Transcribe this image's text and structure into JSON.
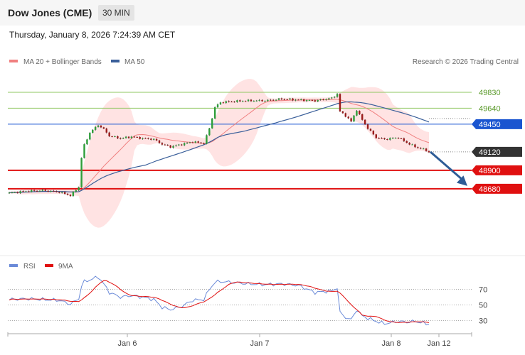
{
  "header": {
    "title": "Dow Jones (CME)",
    "timeframe": "30 MIN",
    "datetime": "Thursday, January 8, 2026 7:24:39 AM CET"
  },
  "legend": {
    "ma20": "MA 20 + Bollinger Bands",
    "ma50": "MA 50",
    "credit": "Research © 2026 Trading Central",
    "rsi": "RSI",
    "rsi_ma": "9MA"
  },
  "colors": {
    "ma20": "#f08080",
    "ma50": "#3a5f9a",
    "band_fill": "#ffdede",
    "resistance": "#8fc760",
    "pivot": "#1a55d0",
    "support": "#e01010",
    "last": "#333333",
    "arrow": "#2e5c96",
    "rsi": "#6a8ad8",
    "rsi_ma": "#e01010"
  },
  "chart_data": [
    {
      "type": "candlestick",
      "ylim": [
        47900,
        50050
      ],
      "x_labels": [
        "Jan 6",
        "Jan 7",
        "Jan 8",
        "Jan 12"
      ],
      "levels": [
        {
          "value": 49830,
          "label": "49830",
          "kind": "resistance"
        },
        {
          "value": 49640,
          "label": "49640",
          "kind": "resistance"
        },
        {
          "value": 49450,
          "label": "49450",
          "kind": "pivot"
        },
        {
          "value": 49120,
          "label": "49120",
          "kind": "last"
        },
        {
          "value": 48900,
          "label": "48900",
          "kind": "support"
        },
        {
          "value": 48680,
          "label": "48680",
          "kind": "support"
        }
      ],
      "close_keypoints": [
        [
          0,
          48630
        ],
        [
          6,
          48650
        ],
        [
          12,
          48660
        ],
        [
          18,
          48640
        ],
        [
          22,
          48600
        ],
        [
          25,
          48700
        ],
        [
          26,
          49050
        ],
        [
          27,
          49200
        ],
        [
          29,
          49350
        ],
        [
          32,
          49440
        ],
        [
          34,
          49390
        ],
        [
          36,
          49310
        ],
        [
          40,
          49280
        ],
        [
          44,
          49300
        ],
        [
          48,
          49280
        ],
        [
          52,
          49270
        ],
        [
          55,
          49210
        ],
        [
          58,
          49180
        ],
        [
          62,
          49210
        ],
        [
          66,
          49240
        ],
        [
          70,
          49220
        ],
        [
          72,
          49400
        ],
        [
          74,
          49650
        ],
        [
          76,
          49710
        ],
        [
          80,
          49720
        ],
        [
          86,
          49730
        ],
        [
          92,
          49730
        ],
        [
          98,
          49750
        ],
        [
          104,
          49740
        ],
        [
          110,
          49730
        ],
        [
          116,
          49760
        ],
        [
          118,
          49810
        ],
        [
          119,
          49600
        ],
        [
          121,
          49550
        ],
        [
          123,
          49480
        ],
        [
          125,
          49620
        ],
        [
          127,
          49500
        ],
        [
          129,
          49400
        ],
        [
          132,
          49290
        ],
        [
          135,
          49270
        ],
        [
          140,
          49290
        ],
        [
          143,
          49230
        ],
        [
          146,
          49180
        ],
        [
          149,
          49150
        ],
        [
          151,
          49120
        ]
      ],
      "forecast": {
        "from": 49120,
        "to": 48680
      }
    },
    {
      "type": "line",
      "name": "RSI",
      "ylim": [
        15,
        95
      ],
      "ticks": [
        70,
        50,
        30
      ],
      "rsi_keypoints": [
        [
          0,
          57
        ],
        [
          6,
          58
        ],
        [
          12,
          57
        ],
        [
          18,
          56
        ],
        [
          22,
          51
        ],
        [
          25,
          58
        ],
        [
          26,
          74
        ],
        [
          27,
          80
        ],
        [
          29,
          82
        ],
        [
          32,
          86
        ],
        [
          34,
          77
        ],
        [
          36,
          66
        ],
        [
          40,
          60
        ],
        [
          44,
          62
        ],
        [
          48,
          60
        ],
        [
          52,
          57
        ],
        [
          55,
          47
        ],
        [
          58,
          44
        ],
        [
          62,
          48
        ],
        [
          66,
          56
        ],
        [
          70,
          57
        ],
        [
          72,
          70
        ],
        [
          74,
          79
        ],
        [
          76,
          80
        ],
        [
          80,
          79
        ],
        [
          86,
          77
        ],
        [
          92,
          76
        ],
        [
          98,
          77
        ],
        [
          104,
          75
        ],
        [
          110,
          66
        ],
        [
          116,
          68
        ],
        [
          118,
          72
        ],
        [
          119,
          40
        ],
        [
          121,
          34
        ],
        [
          123,
          31
        ],
        [
          125,
          44
        ],
        [
          127,
          36
        ],
        [
          129,
          33
        ],
        [
          132,
          29
        ],
        [
          135,
          26
        ],
        [
          140,
          29
        ],
        [
          143,
          28
        ],
        [
          146,
          29
        ],
        [
          149,
          27
        ],
        [
          151,
          25
        ]
      ]
    }
  ]
}
